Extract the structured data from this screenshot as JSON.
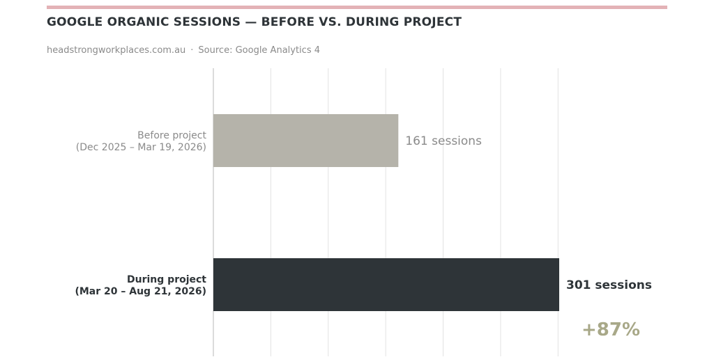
{
  "header": {
    "title": "GOOGLE ORGANIC SESSIONS — BEFORE VS. DURING PROJECT",
    "site": "headstrongworkplaces.com.au",
    "separator": "·",
    "source": "Source: Google Analytics 4",
    "accent_color": "#e3b2b6"
  },
  "chart_data": {
    "type": "bar",
    "orientation": "horizontal",
    "title": "GOOGLE ORGANIC SESSIONS — BEFORE VS. DURING PROJECT",
    "categories": [
      {
        "line1": "Before project",
        "line2": "(Dec 2025 – Mar 19, 2026)",
        "bold": false
      },
      {
        "line1": "During project",
        "line2": "(Mar 20 – Aug 21, 2026)",
        "bold": true
      }
    ],
    "values": [
      161,
      301
    ],
    "value_labels": [
      "161 sessions",
      "301 sessions"
    ],
    "colors": [
      "#b5b3aa",
      "#2e3438"
    ],
    "label_colors": [
      "#8a8a8a",
      "#2e3438"
    ],
    "xlim": [
      0,
      301
    ],
    "grid": true,
    "annotation": {
      "text": "+87%",
      "color": "#a8a888"
    }
  }
}
